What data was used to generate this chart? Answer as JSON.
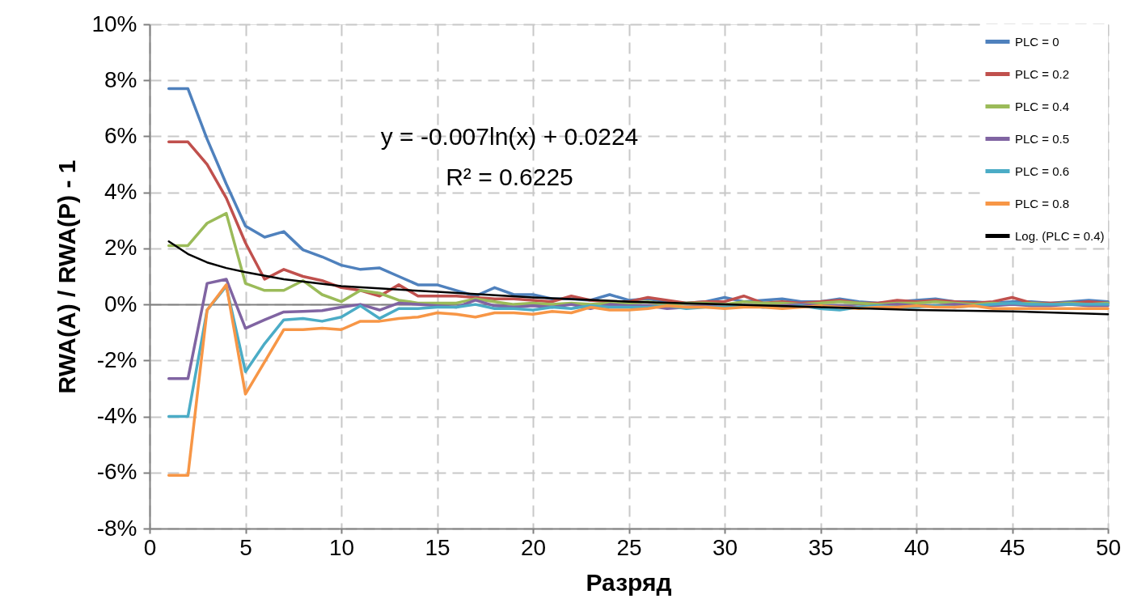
{
  "chart_data": {
    "type": "line",
    "xlabel": "Разряд",
    "ylabel": "RWA(A) / RWA(P) - 1",
    "x": [
      1,
      2,
      3,
      4,
      5,
      6,
      7,
      8,
      9,
      10,
      11,
      12,
      13,
      14,
      15,
      16,
      17,
      18,
      19,
      20,
      21,
      22,
      23,
      24,
      25,
      26,
      27,
      28,
      29,
      30,
      31,
      32,
      33,
      34,
      35,
      36,
      37,
      38,
      39,
      40,
      41,
      42,
      43,
      44,
      45,
      46,
      47,
      48,
      49,
      50
    ],
    "series": [
      {
        "name": "PLC = 0",
        "color": "#4f81bd",
        "values": [
          7.7,
          7.7,
          5.9,
          4.3,
          2.8,
          2.4,
          2.6,
          1.95,
          1.7,
          1.4,
          1.25,
          1.3,
          1.0,
          0.7,
          0.7,
          0.5,
          0.3,
          0.6,
          0.35,
          0.35,
          0.2,
          0.2,
          0.15,
          0.35,
          0.15,
          0.2,
          0.1,
          0.05,
          0.1,
          0.25,
          0.1,
          0.15,
          0.2,
          0.1,
          0.1,
          0.2,
          0.1,
          0.05,
          0.1,
          0.15,
          0.2,
          0.1,
          0.1,
          0.05,
          0.1,
          0.1,
          0.05,
          0.1,
          0.15,
          0.1
        ]
      },
      {
        "name": "PLC = 0.2",
        "color": "#c0504d",
        "values": [
          5.8,
          5.8,
          5.0,
          3.8,
          2.2,
          0.9,
          1.25,
          1.0,
          0.85,
          0.6,
          0.5,
          0.3,
          0.7,
          0.3,
          0.3,
          0.3,
          0.25,
          0.2,
          0.2,
          0.15,
          0.1,
          0.3,
          0.15,
          0.1,
          0.1,
          0.25,
          0.15,
          0.05,
          0.1,
          0.1,
          0.3,
          0.05,
          0.1,
          0.05,
          0.1,
          0.15,
          0.05,
          0.05,
          0.15,
          0.1,
          0.15,
          0.1,
          0.05,
          0.1,
          0.25,
          0.05,
          0.05,
          0.05,
          0.1,
          0.05
        ]
      },
      {
        "name": "PLC = 0.4",
        "color": "#9bbb59",
        "values": [
          2.1,
          2.1,
          2.9,
          3.25,
          0.75,
          0.5,
          0.5,
          0.85,
          0.35,
          0.1,
          0.5,
          0.4,
          0.15,
          0.05,
          0.05,
          0.05,
          0.2,
          0.1,
          0.0,
          0.05,
          0.0,
          0.05,
          0.0,
          0.05,
          0.05,
          0.1,
          0.0,
          0.05,
          0.05,
          0.0,
          0.1,
          0.05,
          0.05,
          0.0,
          0.05,
          0.1,
          0.05,
          0.0,
          0.05,
          0.05,
          0.1,
          0.05,
          0.0,
          0.05,
          0.0,
          0.05,
          0.0,
          0.05,
          0.0,
          0.05
        ]
      },
      {
        "name": "PLC = 0.5",
        "color": "#8064a2",
        "values": [
          -2.65,
          -2.65,
          0.75,
          0.9,
          -0.85,
          -0.55,
          -0.27,
          -0.25,
          -0.22,
          -0.1,
          0.0,
          -0.2,
          0.05,
          0.0,
          -0.05,
          -0.1,
          0.15,
          -0.05,
          -0.1,
          -0.05,
          -0.1,
          0.0,
          -0.15,
          0.0,
          -0.05,
          -0.05,
          -0.15,
          -0.1,
          -0.05,
          -0.1,
          -0.05,
          -0.1,
          -0.05,
          0.0,
          -0.05,
          -0.05,
          -0.1,
          -0.05,
          0.0,
          -0.05,
          -0.05,
          0.0,
          -0.05,
          -0.05,
          0.0,
          -0.05,
          -0.05,
          0.0,
          -0.05,
          -0.05
        ]
      },
      {
        "name": "PLC = 0.6",
        "color": "#4bacc6",
        "values": [
          -4.0,
          -4.0,
          -0.2,
          0.65,
          -2.4,
          -1.4,
          -0.55,
          -0.5,
          -0.6,
          -0.45,
          -0.05,
          -0.5,
          -0.15,
          -0.15,
          -0.1,
          -0.1,
          0.0,
          -0.15,
          -0.15,
          -0.2,
          -0.1,
          -0.15,
          -0.05,
          -0.1,
          -0.1,
          -0.1,
          -0.05,
          -0.15,
          -0.1,
          -0.1,
          -0.05,
          -0.1,
          -0.1,
          -0.05,
          -0.15,
          -0.2,
          -0.1,
          -0.05,
          -0.1,
          -0.1,
          -0.05,
          -0.1,
          -0.05,
          0.0,
          0.05,
          0.0,
          0.0,
          0.0,
          0.0,
          0.0
        ]
      },
      {
        "name": "PLC = 0.8",
        "color": "#f79646",
        "values": [
          -6.1,
          -6.1,
          -0.2,
          0.7,
          -3.2,
          -2.05,
          -0.9,
          -0.9,
          -0.85,
          -0.9,
          -0.6,
          -0.6,
          -0.5,
          -0.45,
          -0.3,
          -0.35,
          -0.45,
          -0.3,
          -0.3,
          -0.35,
          -0.25,
          -0.3,
          -0.1,
          -0.2,
          -0.2,
          -0.15,
          -0.05,
          -0.1,
          -0.1,
          -0.15,
          -0.1,
          -0.1,
          -0.15,
          -0.1,
          -0.05,
          -0.1,
          -0.15,
          -0.1,
          -0.1,
          -0.05,
          -0.1,
          -0.1,
          -0.05,
          -0.15,
          -0.15,
          -0.15,
          -0.15,
          -0.15,
          -0.15,
          -0.15
        ]
      },
      {
        "name": "Log. (PLC = 0.4)",
        "color": "#000000",
        "x": [
          1,
          2,
          3,
          4,
          5,
          7,
          10,
          15,
          20,
          25,
          30,
          35,
          40,
          45,
          50
        ],
        "values": [
          2.25,
          1.8,
          1.5,
          1.3,
          1.15,
          0.9,
          0.65,
          0.45,
          0.25,
          0.1,
          0.0,
          -0.1,
          -0.2,
          -0.25,
          -0.35
        ]
      }
    ],
    "xlim": [
      0,
      50
    ],
    "xticks": [
      0,
      5,
      10,
      15,
      20,
      25,
      30,
      35,
      40,
      45,
      50
    ],
    "ylim": [
      -8,
      10
    ],
    "yticks": [
      {
        "value": -8,
        "label": "-8%"
      },
      {
        "value": -6,
        "label": "-6%"
      },
      {
        "value": -4,
        "label": "-4%"
      },
      {
        "value": -2,
        "label": "-2%"
      },
      {
        "value": 0,
        "label": "0%"
      },
      {
        "value": 2,
        "label": "2%"
      },
      {
        "value": 4,
        "label": "4%"
      },
      {
        "value": 6,
        "label": "6%"
      },
      {
        "value": 8,
        "label": "8%"
      },
      {
        "value": 10,
        "label": "10%"
      }
    ],
    "annotations": [
      "y = -0.007ln(x) + 0.0224",
      "R² = 0.6225"
    ],
    "grid": true,
    "legend": "top right",
    "marker": "none",
    "line_style": "solid"
  }
}
